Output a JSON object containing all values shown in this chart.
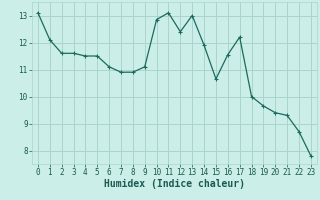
{
  "x": [
    0,
    1,
    2,
    3,
    4,
    5,
    6,
    7,
    8,
    9,
    10,
    11,
    12,
    13,
    14,
    15,
    16,
    17,
    18,
    19,
    20,
    21,
    22,
    23
  ],
  "y": [
    13.1,
    12.1,
    11.6,
    11.6,
    11.5,
    11.5,
    11.1,
    10.9,
    10.9,
    11.1,
    12.85,
    13.1,
    12.4,
    13.0,
    11.9,
    10.65,
    11.55,
    12.2,
    10.0,
    9.65,
    9.4,
    9.3,
    8.7,
    7.8
  ],
  "line_color": "#1a6b5e",
  "marker": "+",
  "marker_size": 3,
  "marker_linewidth": 0.8,
  "line_width": 0.9,
  "bg_color": "#cceee8",
  "grid_color": "#aad4cc",
  "xlabel": "Humidex (Indice chaleur)",
  "xlim": [
    -0.5,
    23.5
  ],
  "ylim": [
    7.5,
    13.5
  ],
  "yticks": [
    8,
    9,
    10,
    11,
    12,
    13
  ],
  "xticks": [
    0,
    1,
    2,
    3,
    4,
    5,
    6,
    7,
    8,
    9,
    10,
    11,
    12,
    13,
    14,
    15,
    16,
    17,
    18,
    19,
    20,
    21,
    22,
    23
  ],
  "tick_font_color": "#1a5a50",
  "xlabel_font_color": "#1a5a50",
  "tick_fontsize": 5.5,
  "xlabel_fontsize": 7
}
